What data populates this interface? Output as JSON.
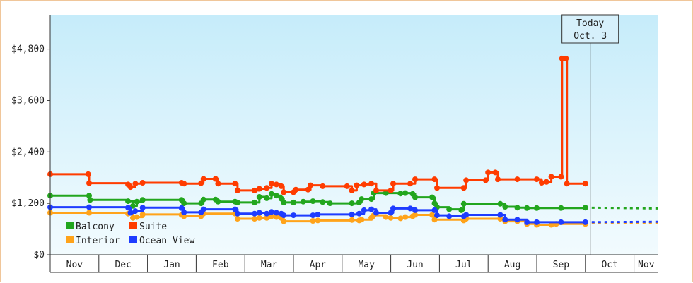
{
  "chart_data": {
    "type": "line",
    "title": "",
    "xlabel": "",
    "ylabel": "",
    "ylim": [
      0,
      5600
    ],
    "yticks": [
      {
        "value": 0,
        "label": "$0"
      },
      {
        "value": 1200,
        "label": "$1,200"
      },
      {
        "value": 2400,
        "label": "$2,400"
      },
      {
        "value": 3600,
        "label": "$3,600"
      },
      {
        "value": 4800,
        "label": "$4,800"
      }
    ],
    "x_months": [
      "Nov",
      "Dec",
      "Jan",
      "Feb",
      "Mar",
      "Apr",
      "May",
      "Jun",
      "Jul",
      "Aug",
      "Sep",
      "Oct",
      "Nov"
    ],
    "today": {
      "line1": "Today",
      "line2": "Oct. 3",
      "x": 11.1
    },
    "legend_placement": "bottom-left",
    "grid": false,
    "colors": {
      "Balcony": "#22a61e",
      "Suite": "#ff3c00",
      "Interior": "#ffa31a",
      "Ocean View": "#1e3cff"
    },
    "series": [
      {
        "name": "Balcony",
        "forecast": [
          1100,
          1080
        ],
        "points": [
          [
            0.0,
            1380
          ],
          [
            0.8,
            1380
          ],
          [
            0.82,
            1280
          ],
          [
            1.6,
            1250
          ],
          [
            1.7,
            1140
          ],
          [
            1.78,
            1240
          ],
          [
            1.9,
            1280
          ],
          [
            2.7,
            1280
          ],
          [
            2.75,
            1200
          ],
          [
            3.1,
            1200
          ],
          [
            3.15,
            1290
          ],
          [
            3.4,
            1290
          ],
          [
            3.45,
            1240
          ],
          [
            3.8,
            1240
          ],
          [
            3.85,
            1220
          ],
          [
            4.2,
            1220
          ],
          [
            4.3,
            1350
          ],
          [
            4.45,
            1320
          ],
          [
            4.55,
            1420
          ],
          [
            4.65,
            1380
          ],
          [
            4.75,
            1310
          ],
          [
            4.8,
            1220
          ],
          [
            5.0,
            1220
          ],
          [
            5.2,
            1240
          ],
          [
            5.4,
            1250
          ],
          [
            5.6,
            1230
          ],
          [
            5.75,
            1200
          ],
          [
            6.2,
            1200
          ],
          [
            6.35,
            1220
          ],
          [
            6.4,
            1300
          ],
          [
            6.6,
            1300
          ],
          [
            6.65,
            1440
          ],
          [
            6.9,
            1440
          ],
          [
            7.2,
            1430
          ],
          [
            7.3,
            1440
          ],
          [
            7.45,
            1420
          ],
          [
            7.5,
            1340
          ],
          [
            7.85,
            1340
          ],
          [
            7.9,
            1200
          ],
          [
            7.95,
            1110
          ],
          [
            8.2,
            1060
          ],
          [
            8.45,
            1040
          ],
          [
            8.5,
            1190
          ],
          [
            9.25,
            1190
          ],
          [
            9.35,
            1120
          ],
          [
            9.6,
            1100
          ],
          [
            9.8,
            1090
          ],
          [
            10.0,
            1090
          ],
          [
            10.5,
            1090
          ],
          [
            11.0,
            1100
          ]
        ]
      },
      {
        "name": "Suite",
        "forecast": [],
        "points": [
          [
            0.0,
            1880
          ],
          [
            0.78,
            1880
          ],
          [
            0.8,
            1670
          ],
          [
            1.6,
            1640
          ],
          [
            1.65,
            1580
          ],
          [
            1.75,
            1660
          ],
          [
            1.9,
            1680
          ],
          [
            2.7,
            1680
          ],
          [
            2.75,
            1660
          ],
          [
            3.1,
            1670
          ],
          [
            3.15,
            1770
          ],
          [
            3.4,
            1770
          ],
          [
            3.45,
            1660
          ],
          [
            3.8,
            1660
          ],
          [
            3.85,
            1500
          ],
          [
            4.2,
            1500
          ],
          [
            4.3,
            1540
          ],
          [
            4.45,
            1560
          ],
          [
            4.55,
            1660
          ],
          [
            4.65,
            1640
          ],
          [
            4.75,
            1600
          ],
          [
            4.8,
            1460
          ],
          [
            5.0,
            1460
          ],
          [
            5.05,
            1520
          ],
          [
            5.3,
            1520
          ],
          [
            5.35,
            1620
          ],
          [
            5.6,
            1600
          ],
          [
            6.1,
            1600
          ],
          [
            6.2,
            1500
          ],
          [
            6.3,
            1620
          ],
          [
            6.45,
            1640
          ],
          [
            6.6,
            1660
          ],
          [
            6.7,
            1500
          ],
          [
            7.0,
            1500
          ],
          [
            7.05,
            1660
          ],
          [
            7.4,
            1660
          ],
          [
            7.5,
            1760
          ],
          [
            7.9,
            1760
          ],
          [
            7.95,
            1560
          ],
          [
            8.5,
            1560
          ],
          [
            8.55,
            1740
          ],
          [
            8.95,
            1740
          ],
          [
            9.0,
            1920
          ],
          [
            9.15,
            1920
          ],
          [
            9.2,
            1760
          ],
          [
            9.6,
            1760
          ],
          [
            10.0,
            1760
          ],
          [
            10.1,
            1680
          ],
          [
            10.2,
            1700
          ],
          [
            10.3,
            1820
          ],
          [
            10.5,
            1820
          ],
          [
            10.52,
            4580
          ],
          [
            10.6,
            4580
          ],
          [
            10.62,
            1660
          ],
          [
            11.0,
            1660
          ]
        ]
      },
      {
        "name": "Interior",
        "forecast": [
          740,
          740
        ],
        "points": [
          [
            0.0,
            980
          ],
          [
            0.8,
            980
          ],
          [
            1.6,
            960
          ],
          [
            1.7,
            860
          ],
          [
            1.78,
            880
          ],
          [
            1.9,
            940
          ],
          [
            2.7,
            930
          ],
          [
            2.75,
            900
          ],
          [
            3.1,
            900
          ],
          [
            3.15,
            960
          ],
          [
            3.8,
            960
          ],
          [
            3.85,
            840
          ],
          [
            4.2,
            840
          ],
          [
            4.3,
            860
          ],
          [
            4.45,
            860
          ],
          [
            4.55,
            900
          ],
          [
            4.65,
            880
          ],
          [
            4.75,
            860
          ],
          [
            4.8,
            780
          ],
          [
            5.4,
            790
          ],
          [
            5.5,
            800
          ],
          [
            6.2,
            810
          ],
          [
            6.35,
            800
          ],
          [
            6.4,
            820
          ],
          [
            6.6,
            860
          ],
          [
            6.65,
            920
          ],
          [
            6.9,
            880
          ],
          [
            7.0,
            860
          ],
          [
            7.2,
            850
          ],
          [
            7.3,
            880
          ],
          [
            7.45,
            900
          ],
          [
            7.5,
            930
          ],
          [
            7.85,
            930
          ],
          [
            7.9,
            820
          ],
          [
            8.5,
            800
          ],
          [
            8.55,
            840
          ],
          [
            9.25,
            840
          ],
          [
            9.35,
            780
          ],
          [
            9.6,
            780
          ],
          [
            9.8,
            720
          ],
          [
            10.0,
            700
          ],
          [
            10.3,
            700
          ],
          [
            10.4,
            720
          ],
          [
            11.0,
            720
          ]
        ]
      },
      {
        "name": "Ocean View",
        "forecast": [
          760,
          770
        ],
        "points": [
          [
            0.0,
            1110
          ],
          [
            0.8,
            1110
          ],
          [
            1.6,
            1100
          ],
          [
            1.65,
            980
          ],
          [
            1.75,
            1020
          ],
          [
            1.9,
            1100
          ],
          [
            2.7,
            1090
          ],
          [
            2.75,
            990
          ],
          [
            3.1,
            990
          ],
          [
            3.15,
            1060
          ],
          [
            3.8,
            1060
          ],
          [
            3.85,
            960
          ],
          [
            4.2,
            960
          ],
          [
            4.3,
            980
          ],
          [
            4.45,
            960
          ],
          [
            4.55,
            1000
          ],
          [
            4.65,
            980
          ],
          [
            4.75,
            960
          ],
          [
            4.8,
            920
          ],
          [
            5.0,
            920
          ],
          [
            5.4,
            920
          ],
          [
            5.5,
            940
          ],
          [
            6.2,
            940
          ],
          [
            6.35,
            960
          ],
          [
            6.45,
            1040
          ],
          [
            6.6,
            1060
          ],
          [
            6.7,
            980
          ],
          [
            7.0,
            980
          ],
          [
            7.05,
            1080
          ],
          [
            7.4,
            1080
          ],
          [
            7.5,
            1040
          ],
          [
            7.9,
            1040
          ],
          [
            7.95,
            920
          ],
          [
            8.2,
            900
          ],
          [
            8.5,
            900
          ],
          [
            8.55,
            930
          ],
          [
            9.25,
            930
          ],
          [
            9.35,
            820
          ],
          [
            9.6,
            820
          ],
          [
            9.8,
            760
          ],
          [
            10.0,
            760
          ],
          [
            10.5,
            760
          ],
          [
            11.0,
            760
          ]
        ]
      }
    ]
  }
}
